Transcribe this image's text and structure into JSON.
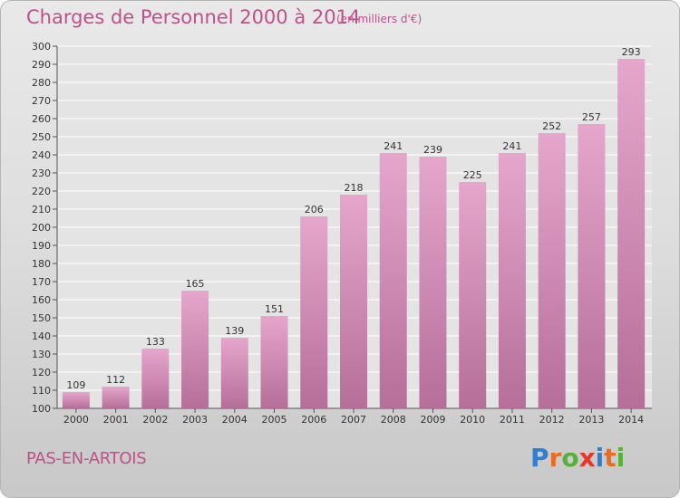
{
  "header": {
    "title": "Charges de Personnel 2000 à 2014",
    "subtitle": "(en milliers d'€)"
  },
  "footer": {
    "commune": "PAS-EN-ARTOIS",
    "logo_letters": [
      {
        "ch": "P",
        "color": "#2f7fd0"
      },
      {
        "ch": "r",
        "color": "#ea6c23"
      },
      {
        "ch": "o",
        "color": "#56b03a"
      },
      {
        "ch": "x",
        "color": "#e8352b"
      },
      {
        "ch": "i",
        "color": "#2f7fd0"
      },
      {
        "ch": "t",
        "color": "#ea6c23"
      },
      {
        "ch": "i",
        "color": "#56b03a"
      }
    ]
  },
  "chart_data": {
    "type": "bar",
    "categories": [
      "2000",
      "2001",
      "2002",
      "2003",
      "2004",
      "2005",
      "2006",
      "2007",
      "2008",
      "2009",
      "2010",
      "2011",
      "2012",
      "2013",
      "2014"
    ],
    "values": [
      109,
      112,
      133,
      165,
      139,
      151,
      206,
      218,
      241,
      239,
      225,
      241,
      252,
      257,
      293
    ],
    "ylim": [
      100,
      300
    ],
    "yticks": [
      100,
      110,
      120,
      130,
      140,
      150,
      160,
      170,
      180,
      190,
      200,
      210,
      220,
      230,
      240,
      250,
      260,
      270,
      280,
      290,
      300
    ],
    "grid": true,
    "bar_color_top": "#e6a6cc",
    "bar_color_bottom": "#b56f99",
    "text_color": "#c0508a"
  }
}
